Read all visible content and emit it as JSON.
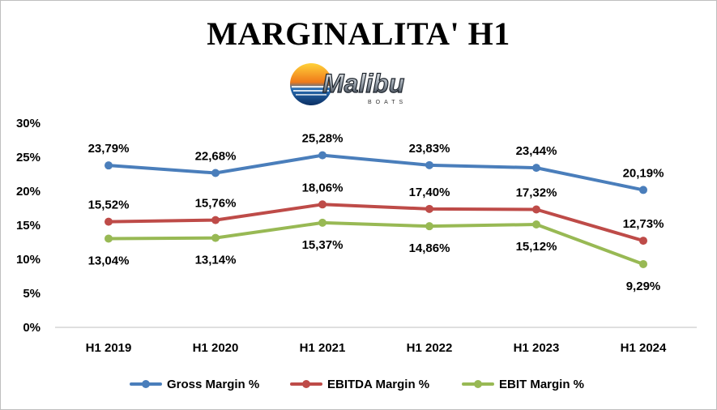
{
  "title": "MARGINALITA' H1",
  "logo": {
    "brand_text": "Malibu",
    "brand_sub": "BOATS"
  },
  "chart_data": {
    "type": "line",
    "categories": [
      "H1 2019",
      "H1 2020",
      "H1 2021",
      "H1 2022",
      "H1 2023",
      "H1 2024"
    ],
    "y_ticks": [
      "0%",
      "5%",
      "10%",
      "15%",
      "20%",
      "25%",
      "30%"
    ],
    "ylim": [
      0,
      30
    ],
    "grid": false,
    "legend_position": "bottom",
    "series": [
      {
        "name": "Gross Margin %",
        "color": "#4a7ebb",
        "values": [
          23.79,
          22.68,
          25.28,
          23.83,
          23.44,
          20.19
        ],
        "labels": [
          "23,79%",
          "22,68%",
          "25,28%",
          "23,83%",
          "23,44%",
          "20,19%"
        ]
      },
      {
        "name": "EBITDA Margin %",
        "color": "#be4b48",
        "values": [
          15.52,
          15.76,
          18.06,
          17.4,
          17.32,
          12.73
        ],
        "labels": [
          "15,52%",
          "15,76%",
          "18,06%",
          "17,40%",
          "17,32%",
          "12,73%"
        ]
      },
      {
        "name": "EBIT Margin %",
        "color": "#98b954",
        "values": [
          13.04,
          13.14,
          15.37,
          14.86,
          15.12,
          9.29
        ],
        "labels": [
          "13,04%",
          "13,14%",
          "15,37%",
          "14,86%",
          "15,12%",
          "9,29%"
        ]
      }
    ]
  }
}
